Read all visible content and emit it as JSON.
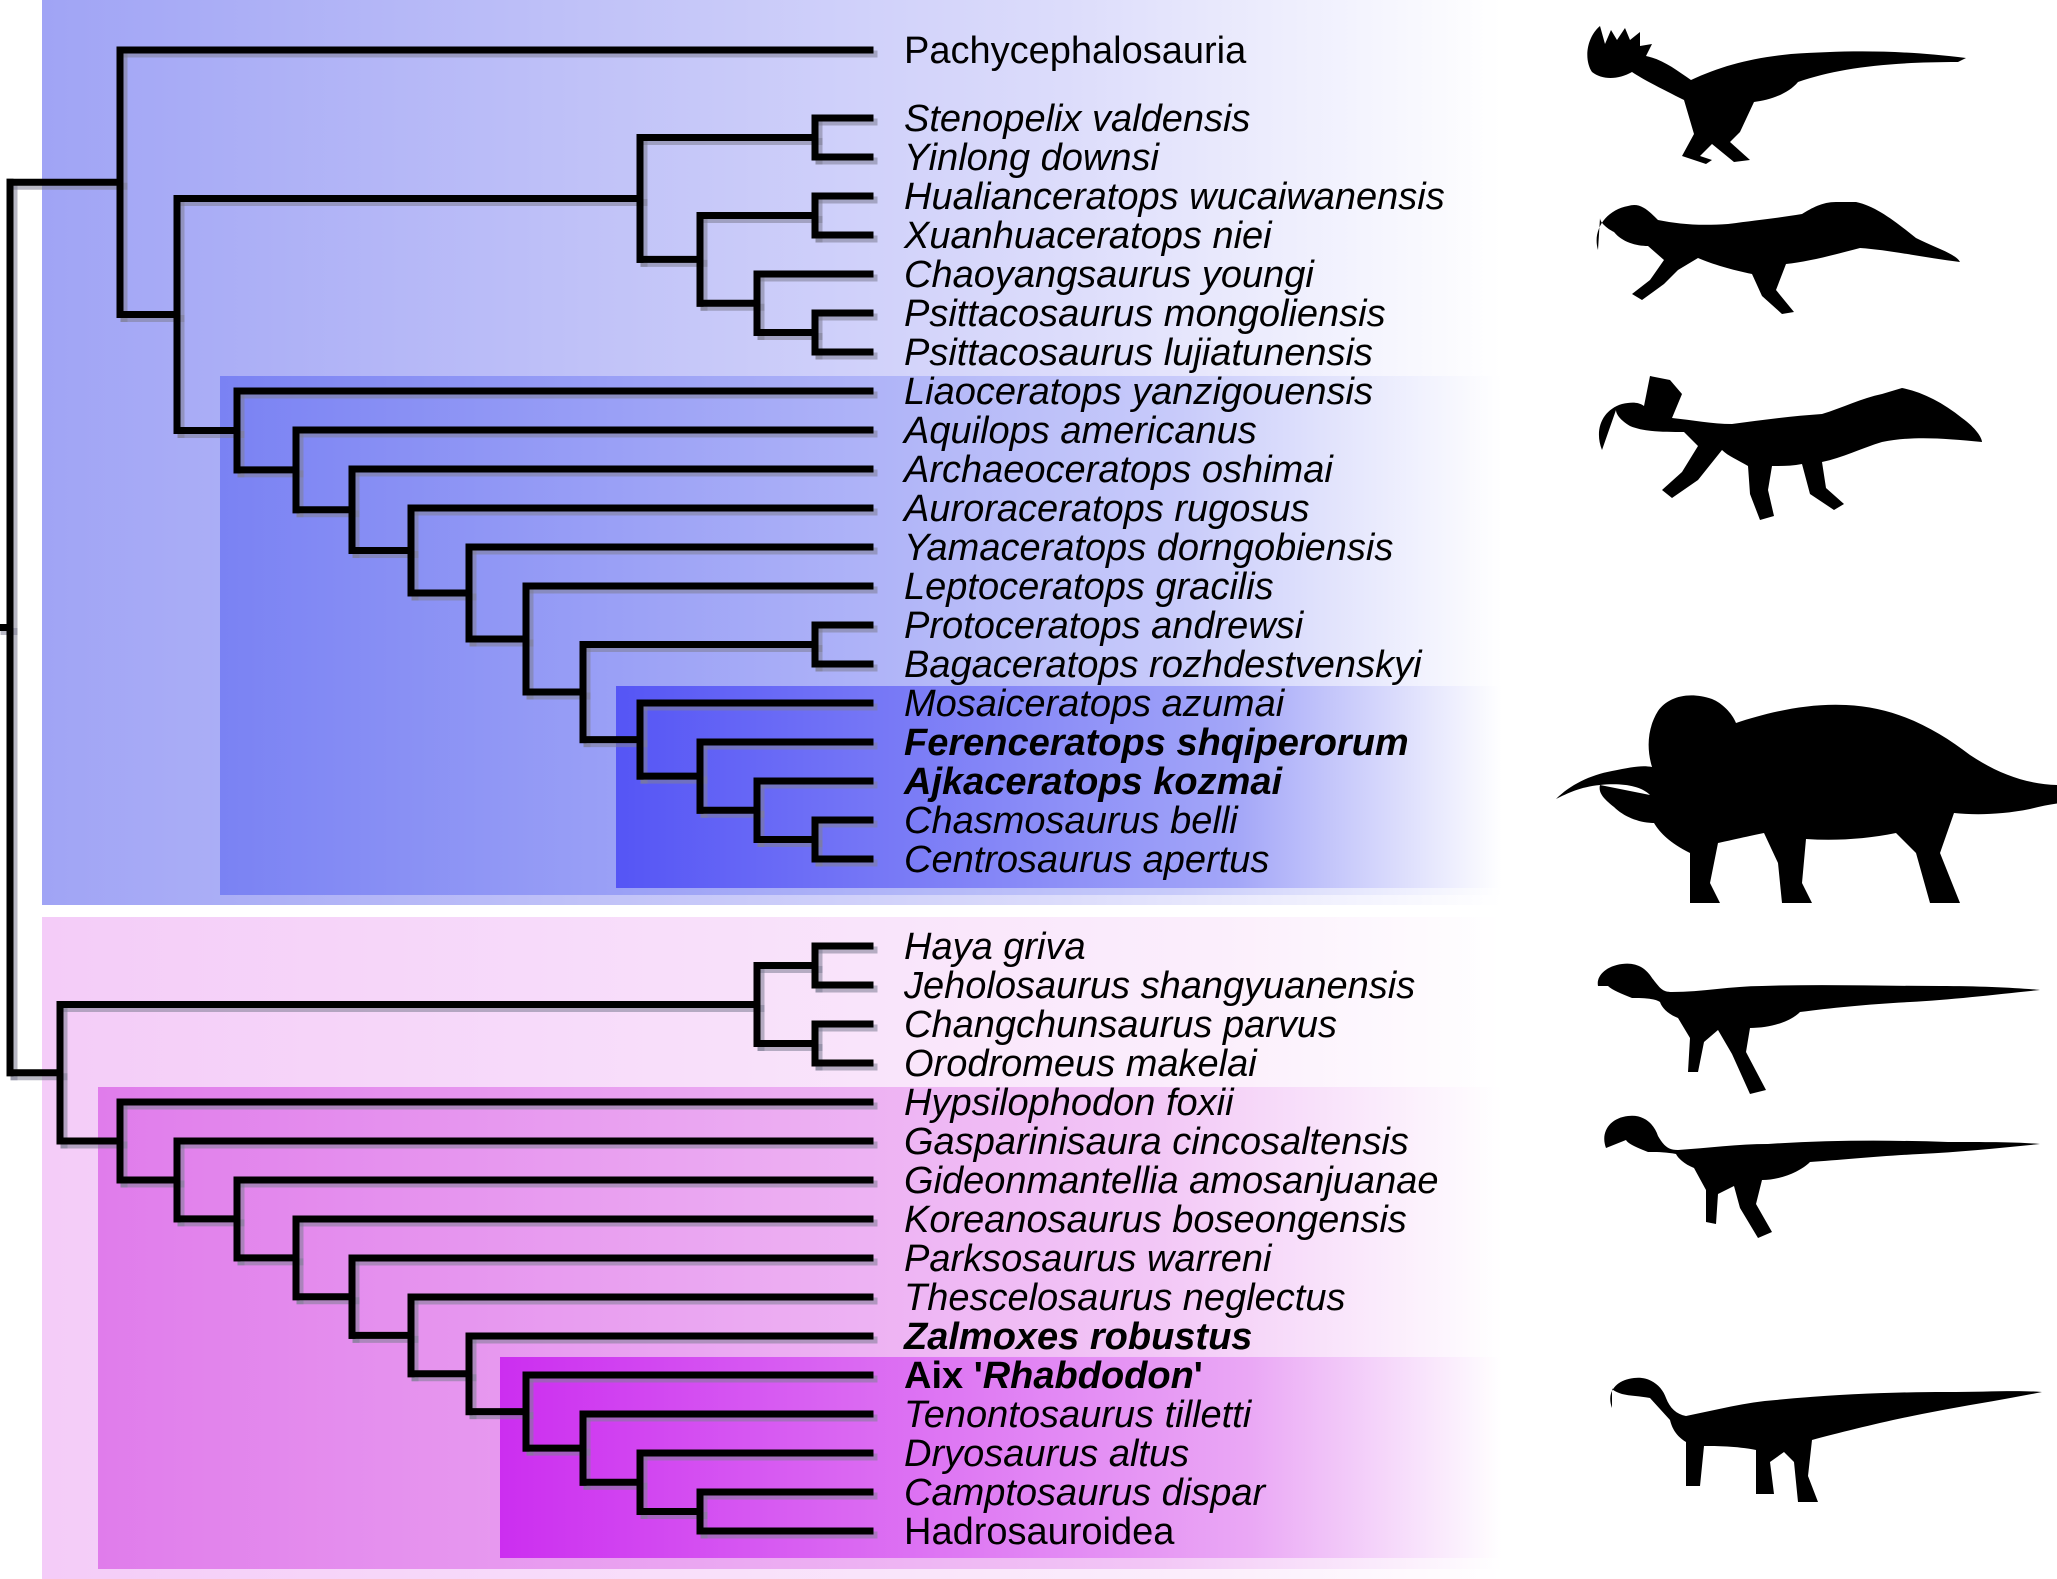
{
  "colors": {
    "marginocephalia_outer": "#a8acf6",
    "ceratopsia_inner": "#8088f4",
    "ceratopsidae_inner": "#5a5cf6",
    "ornithopoda_outer": "#f6dff9",
    "ornithopoda_mid": "#e79af0",
    "ornithopoda_inner": "#cf3cf0",
    "branch": "#000000",
    "silhouette": "#000000"
  },
  "taxa": [
    {
      "name": "Pachycephalosauria",
      "italic": false,
      "bold": false
    },
    {
      "name": "Stenopelix valdensis",
      "italic": true,
      "bold": false
    },
    {
      "name": "Yinlong downsi",
      "italic": true,
      "bold": false
    },
    {
      "name": "Hualianceratops wucaiwanensis",
      "italic": true,
      "bold": false
    },
    {
      "name": "Xuanhuaceratops niei",
      "italic": true,
      "bold": false
    },
    {
      "name": "Chaoyangsaurus youngi",
      "italic": true,
      "bold": false
    },
    {
      "name": "Psittacosaurus mongoliensis",
      "italic": true,
      "bold": false
    },
    {
      "name": "Psittacosaurus lujiatunensis",
      "italic": true,
      "bold": false
    },
    {
      "name": "Liaoceratops yanzigouensis",
      "italic": true,
      "bold": false
    },
    {
      "name": "Aquilops americanus",
      "italic": true,
      "bold": false
    },
    {
      "name": "Archaeoceratops oshimai",
      "italic": true,
      "bold": false
    },
    {
      "name": "Auroraceratops rugosus",
      "italic": true,
      "bold": false
    },
    {
      "name": "Yamaceratops dorngobiensis",
      "italic": true,
      "bold": false
    },
    {
      "name": "Leptoceratops gracilis",
      "italic": true,
      "bold": false
    },
    {
      "name": "Protoceratops andrewsi",
      "italic": true,
      "bold": false
    },
    {
      "name": "Bagaceratops rozhdestvenskyi",
      "italic": true,
      "bold": false
    },
    {
      "name": "Mosaiceratops azumai",
      "italic": true,
      "bold": false
    },
    {
      "name": "Ferenceratops shqiperorum",
      "italic": true,
      "bold": true
    },
    {
      "name": "Ajkaceratops kozmai",
      "italic": true,
      "bold": true
    },
    {
      "name": "Chasmosaurus belli",
      "italic": true,
      "bold": false
    },
    {
      "name": "Centrosaurus apertus",
      "italic": true,
      "bold": false
    },
    {
      "name": "Haya griva",
      "italic": true,
      "bold": false
    },
    {
      "name": "Jeholosaurus shangyuanensis",
      "italic": true,
      "bold": false
    },
    {
      "name": "Changchunsaurus parvus",
      "italic": true,
      "bold": false
    },
    {
      "name": "Orodromeus makelai",
      "italic": true,
      "bold": false
    },
    {
      "name": "Hypsilophodon foxii",
      "italic": true,
      "bold": false
    },
    {
      "name": "Gasparinisaura cincosaltensis",
      "italic": true,
      "bold": false
    },
    {
      "name": "Gideonmantellia amosanjuanae",
      "italic": true,
      "bold": false
    },
    {
      "name": "Koreanosaurus boseongensis",
      "italic": true,
      "bold": false
    },
    {
      "name": "Parksosaurus warreni",
      "italic": true,
      "bold": false
    },
    {
      "name": "Thescelosaurus neglectus",
      "italic": true,
      "bold": false
    },
    {
      "name": "Zalmoxes robustus",
      "italic": true,
      "bold": true
    },
    {
      "name_prefix": "Aix '",
      "name_italic": "Rhabdodon",
      "name_suffix": "'",
      "bold": true,
      "mixed": true
    },
    {
      "name": "Tenontosaurus tilletti",
      "italic": true,
      "bold": false
    },
    {
      "name": "Dryosaurus altus",
      "italic": true,
      "bold": false
    },
    {
      "name": "Camptosaurus dispar",
      "italic": true,
      "bold": false
    },
    {
      "name": "Hadrosauroidea",
      "italic": false,
      "bold": false
    }
  ],
  "silhouettes": [
    {
      "icon": "pachycephalosaur-silhouette-icon"
    },
    {
      "icon": "psittacosaur-silhouette-icon"
    },
    {
      "icon": "protoceratopsian-silhouette-icon"
    },
    {
      "icon": "ceratopsid-silhouette-icon"
    },
    {
      "icon": "small-ornithopod-silhouette-icon"
    },
    {
      "icon": "thescelosaur-silhouette-icon"
    },
    {
      "icon": "iguanodontian-silhouette-icon"
    }
  ]
}
